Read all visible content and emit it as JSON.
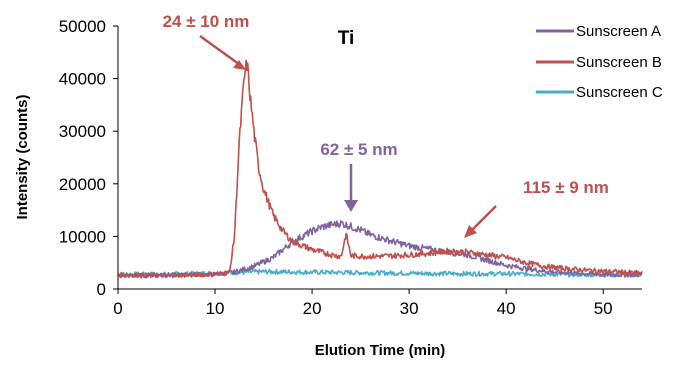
{
  "chart_data": {
    "type": "line",
    "title": "",
    "xlabel": "Elution Time (min)",
    "ylabel": "Intensity (counts)",
    "xlim": [
      0,
      54
    ],
    "ylim": [
      0,
      50000
    ],
    "xticks": [
      0,
      10,
      20,
      30,
      40,
      50
    ],
    "yticks": [
      0,
      10000,
      20000,
      30000,
      40000,
      50000
    ],
    "grid": false,
    "legend_position": "top-right",
    "inner_label": "Ti",
    "series": [
      {
        "name": "Sunscreen A",
        "color": "#8064a2",
        "x": [
          0,
          5,
          10,
          12,
          14,
          16,
          18,
          20,
          21,
          22,
          23,
          24,
          25,
          26,
          28,
          30,
          32,
          34,
          36,
          38,
          40,
          42,
          44,
          46,
          48,
          50,
          52,
          54
        ],
        "y": [
          2500,
          2600,
          2800,
          3200,
          4300,
          6000,
          9000,
          11000,
          11800,
          12200,
          12500,
          11900,
          11200,
          10300,
          9200,
          8200,
          7600,
          7000,
          6500,
          5500,
          4500,
          3900,
          3400,
          3100,
          2900,
          2800,
          2700,
          2700
        ]
      },
      {
        "name": "Sunscreen B",
        "color": "#c0504d",
        "x": [
          0,
          5,
          10,
          11.5,
          12,
          12.5,
          13,
          13.3,
          13.6,
          14,
          14.5,
          15,
          16,
          17,
          18,
          20,
          22,
          23,
          23.5,
          24,
          26,
          28,
          30,
          32,
          34,
          36,
          38,
          40,
          42,
          44,
          46,
          48,
          50,
          52,
          54
        ],
        "y": [
          2700,
          2600,
          2800,
          3200,
          10000,
          28000,
          40000,
          43000,
          37000,
          30000,
          23000,
          19000,
          14000,
          11000,
          9000,
          7500,
          6500,
          6200,
          10500,
          6300,
          6200,
          6300,
          6500,
          6800,
          7200,
          7000,
          6500,
          6000,
          5000,
          4300,
          3900,
          3600,
          3400,
          3200,
          3000
        ]
      },
      {
        "name": "Sunscreen C",
        "color": "#4bacc6",
        "x": [
          0,
          5,
          10,
          15,
          20,
          25,
          30,
          35,
          40,
          45,
          50,
          54
        ],
        "y": [
          2800,
          2800,
          3000,
          3300,
          3200,
          3100,
          3000,
          2900,
          2900,
          2800,
          2700,
          2700
        ]
      }
    ],
    "annotations": [
      {
        "text": "24 ± 10 nm",
        "color": "#c0504d"
      },
      {
        "text": "62 ± 5 nm",
        "color": "#8064a2"
      },
      {
        "text": "115 ± 9 nm",
        "color": "#c0504d"
      }
    ]
  }
}
